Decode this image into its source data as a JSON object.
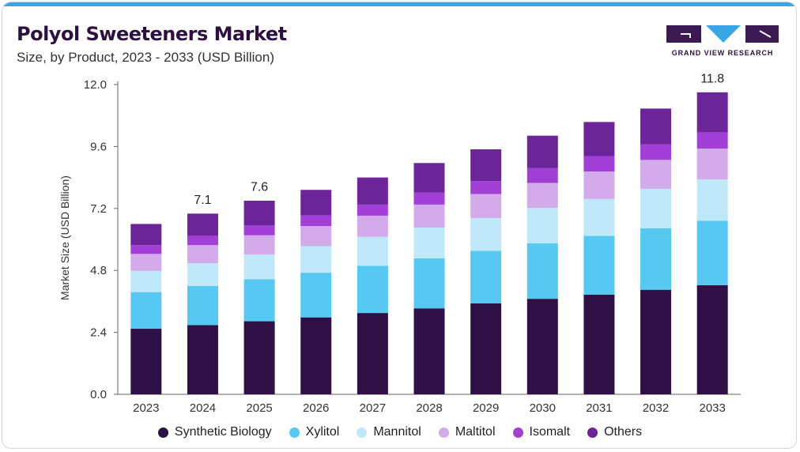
{
  "header": {
    "title": "Polyol Sweeteners Market",
    "subtitle": "Size, by Product, 2023 - 2033 (USD Billion)"
  },
  "logo": {
    "text": "GRAND VIEW RESEARCH",
    "colors": [
      "#3b1a54",
      "#3aa6e6"
    ]
  },
  "colors": {
    "accent_bar": "#3aa6e6",
    "title": "#2c1040"
  },
  "chart_data": {
    "type": "bar",
    "stacked": true,
    "title": "Polyol Sweeteners Market",
    "subtitle": "Size, by Product, 2023 - 2033 (USD Billion)",
    "xlabel": "",
    "ylabel": "Market Size (USD Billion)",
    "ylim": [
      0,
      12
    ],
    "yticks": [
      "0.0",
      "2.4",
      "4.8",
      "7.2",
      "9.6",
      "12.0"
    ],
    "grid": false,
    "legend_position": "bottom",
    "categories": [
      "2023",
      "2024",
      "2025",
      "2026",
      "2027",
      "2028",
      "2029",
      "2030",
      "2031",
      "2032",
      "2033"
    ],
    "series": [
      {
        "name": "Synthetic Biology",
        "color": "#2e1046",
        "values": [
          2.54,
          2.68,
          2.83,
          2.98,
          3.15,
          3.33,
          3.52,
          3.7,
          3.86,
          4.05,
          4.23
        ]
      },
      {
        "name": "Xylitol",
        "color": "#56c8f2",
        "values": [
          1.42,
          1.52,
          1.63,
          1.73,
          1.83,
          1.94,
          2.04,
          2.15,
          2.28,
          2.38,
          2.49
        ]
      },
      {
        "name": "Mannitol",
        "color": "#bfe8f8",
        "values": [
          0.82,
          0.88,
          0.96,
          1.03,
          1.12,
          1.19,
          1.27,
          1.37,
          1.43,
          1.53,
          1.6
        ]
      },
      {
        "name": "Maltitol",
        "color": "#d3abeb",
        "values": [
          0.66,
          0.7,
          0.74,
          0.78,
          0.82,
          0.89,
          0.93,
          0.97,
          1.06,
          1.12,
          1.2
        ]
      },
      {
        "name": "Isomalt",
        "color": "#a23fd6",
        "values": [
          0.34,
          0.36,
          0.38,
          0.41,
          0.43,
          0.47,
          0.5,
          0.57,
          0.6,
          0.6,
          0.63
        ]
      },
      {
        "name": "Others",
        "color": "#6c2499",
        "values": [
          0.82,
          0.86,
          0.96,
          0.99,
          1.05,
          1.14,
          1.23,
          1.26,
          1.32,
          1.39,
          1.55
        ]
      }
    ],
    "totals": [
      6.6,
      7.1,
      7.6,
      7.9,
      8.4,
      9.0,
      9.5,
      10.0,
      10.6,
      11.1,
      11.8
    ],
    "data_labels": [
      {
        "category": "2024",
        "text": "7.1"
      },
      {
        "category": "2025",
        "text": "7.6"
      },
      {
        "category": "2033",
        "text": "11.8"
      }
    ]
  }
}
